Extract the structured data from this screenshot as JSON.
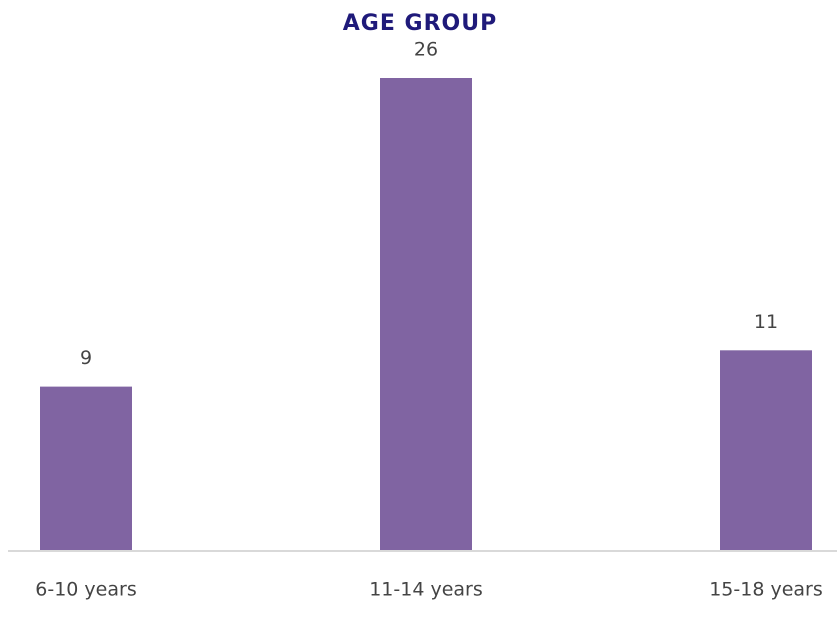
{
  "chart_data": {
    "type": "bar",
    "title": "AGE GROUP",
    "categories": [
      "6-10 years",
      "11-14 years",
      "15-18 years"
    ],
    "values": [
      9,
      26,
      11
    ],
    "color": "#8064a2"
  }
}
